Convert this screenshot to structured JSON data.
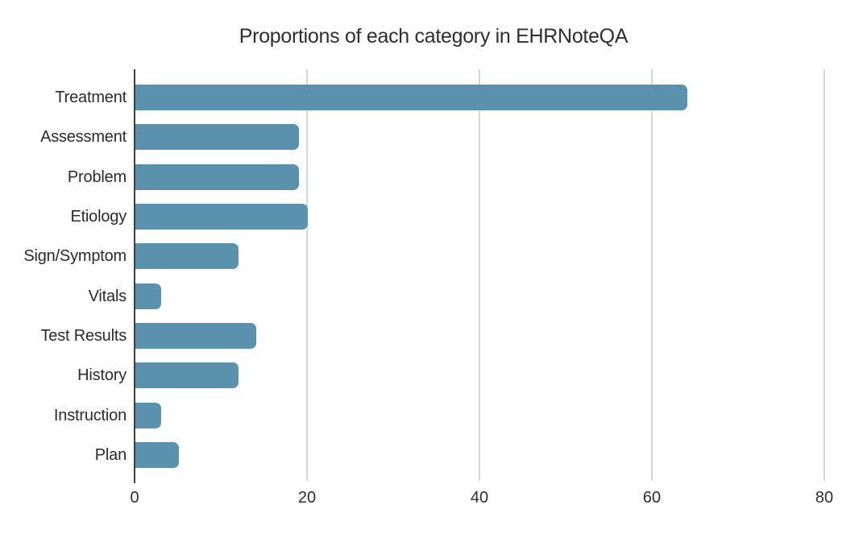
{
  "title": "Proportions of each category in EHRNoteQA",
  "colors": {
    "bar": "#5a91ad",
    "axis_line": "#3d3d3d",
    "gridline": "#d6d6d6",
    "text": "#2b2b2b"
  },
  "chart_data": {
    "type": "bar",
    "orientation": "horizontal",
    "title": "Proportions of each category in EHRNoteQA",
    "categories": [
      "Treatment",
      "Assessment",
      "Problem",
      "Etiology",
      "Sign/Symptom",
      "Vitals",
      "Test Results",
      "History",
      "Instruction",
      "Plan"
    ],
    "values": [
      64,
      19,
      19,
      20,
      12,
      3,
      14,
      12,
      3,
      5
    ],
    "xlabel": "",
    "ylabel": "",
    "xlim": [
      0,
      85
    ],
    "xticks": [
      0,
      20,
      40,
      60,
      80
    ],
    "grid": true,
    "legend": false
  }
}
